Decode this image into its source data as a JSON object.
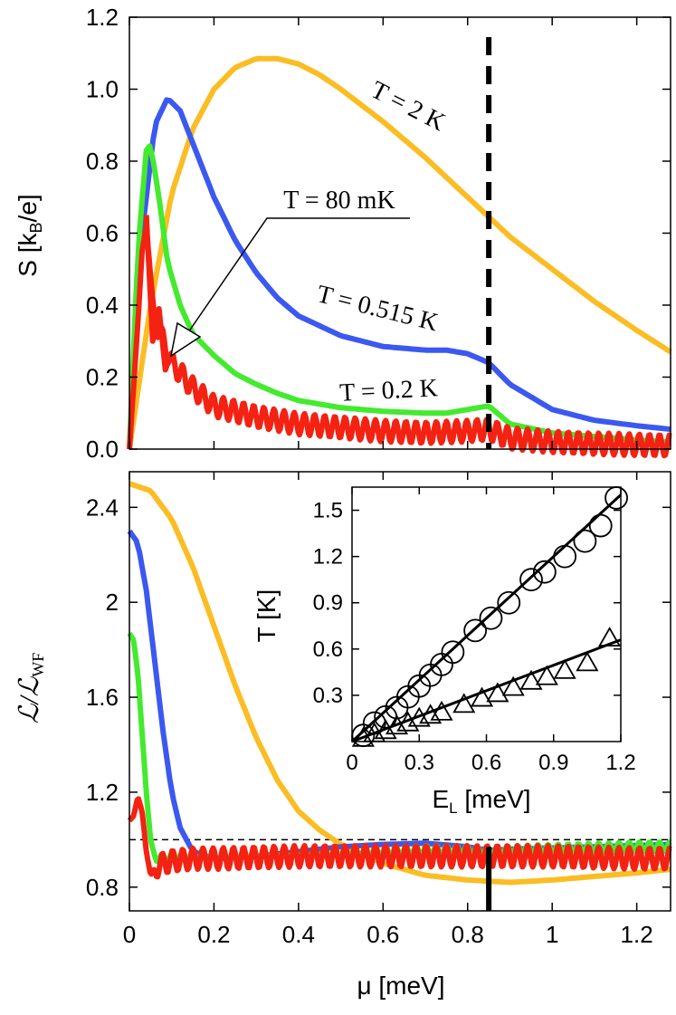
{
  "chart_data": [
    {
      "panel": "top",
      "type": "line",
      "ylabel": "S [kB/e]",
      "ylabel_main": "S [k",
      "ylabel_sub": "B",
      "ylabel_end": "/e]",
      "xlim": [
        0,
        1.28
      ],
      "ylim": [
        0,
        1.2
      ],
      "x_ticks": [
        0,
        0.2,
        0.4,
        0.6,
        0.8,
        1,
        1.2
      ],
      "y_ticks": [
        0.0,
        0.2,
        0.4,
        0.6,
        0.8,
        1.0,
        1.2
      ],
      "y_tick_labels": [
        "0.0",
        "0.2",
        "0.4",
        "0.6",
        "0.8",
        "1.0",
        "1.2"
      ],
      "vline_x": 0.85,
      "series": [
        {
          "name": "T = 2 K",
          "color": "#fbbd23",
          "x": [
            0,
            0.05,
            0.1,
            0.15,
            0.2,
            0.25,
            0.3,
            0.35,
            0.4,
            0.45,
            0.5,
            0.6,
            0.7,
            0.8,
            0.85,
            0.9,
            1.0,
            1.1,
            1.2,
            1.28
          ],
          "y": [
            0,
            0.4,
            0.71,
            0.89,
            1.0,
            1.06,
            1.085,
            1.085,
            1.07,
            1.04,
            1.0,
            0.91,
            0.81,
            0.7,
            0.645,
            0.59,
            0.5,
            0.41,
            0.33,
            0.27
          ]
        },
        {
          "name": "T = 0.515 K",
          "color": "#3b58f0",
          "x": [
            0,
            0.03,
            0.06,
            0.09,
            0.12,
            0.15,
            0.2,
            0.25,
            0.3,
            0.35,
            0.4,
            0.5,
            0.6,
            0.7,
            0.75,
            0.8,
            0.85,
            0.9,
            1.0,
            1.1,
            1.2,
            1.28
          ],
          "y": [
            0,
            0.6,
            0.9,
            0.975,
            0.94,
            0.85,
            0.7,
            0.58,
            0.49,
            0.42,
            0.37,
            0.315,
            0.285,
            0.275,
            0.275,
            0.265,
            0.24,
            0.18,
            0.11,
            0.08,
            0.065,
            0.055
          ]
        },
        {
          "name": "T = 0.2 K",
          "color": "#44ea2e",
          "x": [
            0,
            0.02,
            0.04,
            0.05,
            0.07,
            0.09,
            0.12,
            0.15,
            0.2,
            0.25,
            0.3,
            0.35,
            0.4,
            0.5,
            0.6,
            0.7,
            0.75,
            0.8,
            0.85,
            0.9,
            1.0,
            1.1,
            1.2,
            1.28
          ],
          "y": [
            0,
            0.55,
            0.83,
            0.845,
            0.7,
            0.52,
            0.4,
            0.32,
            0.26,
            0.21,
            0.18,
            0.155,
            0.135,
            0.115,
            0.105,
            0.1,
            0.1,
            0.11,
            0.12,
            0.07,
            0.045,
            0.035,
            0.025,
            0.02
          ]
        },
        {
          "name": "T = 80 mK",
          "color": "#f42212",
          "x": [
            0,
            0.02,
            0.03,
            0.04,
            0.05,
            0.06,
            0.08,
            0.1,
            0.15,
            0.2,
            0.3,
            0.4,
            0.5,
            0.6,
            0.7,
            0.8,
            0.85,
            0.9,
            1.0,
            1.1,
            1.2,
            1.28
          ],
          "y": [
            0,
            0.35,
            0.55,
            0.62,
            0.48,
            0.36,
            0.3,
            0.24,
            0.17,
            0.12,
            0.09,
            0.07,
            0.06,
            0.05,
            0.045,
            0.05,
            0.055,
            0.03,
            0.02,
            0.015,
            0.012,
            0.01
          ],
          "oscillation_amplitude": 0.03
        },
        {
          "name": "T = 80 mK spikes",
          "color": "#f42212",
          "x": [
            0.04,
            0.055,
            0.07,
            0.085,
            0.1
          ],
          "y": [
            0.65,
            0.3,
            0.39,
            0.22,
            0.27
          ],
          "markers": false
        }
      ],
      "annotations": {
        "t2": "T = 2 K",
        "t0515": "T = 0.515 K",
        "t02": "T = 0.2 K",
        "t80": "T = 80 mK"
      }
    },
    {
      "panel": "bottom",
      "type": "line",
      "xlabel": "μ [meV]",
      "ylabel": "L/L_WF",
      "ylabel_main": "ℒ/ℒ",
      "ylabel_sub": "WF",
      "xlim": [
        0,
        1.28
      ],
      "ylim": [
        0.7,
        2.55
      ],
      "x_ticks": [
        0,
        0.2,
        0.4,
        0.6,
        0.8,
        1,
        1.2
      ],
      "y_ticks": [
        0.8,
        1.2,
        1.6,
        2,
        2.4
      ],
      "y_tick_labels": [
        "0.8",
        "1.2",
        "1.6",
        "2",
        "2.4"
      ],
      "hline_y": 1.0,
      "vline_x": 0.85,
      "series": [
        {
          "name": "T = 2 K",
          "color": "#fbbd23",
          "x": [
            0,
            0.05,
            0.1,
            0.15,
            0.2,
            0.25,
            0.3,
            0.35,
            0.4,
            0.45,
            0.5,
            0.6,
            0.7,
            0.8,
            0.9,
            1.0,
            1.1,
            1.2,
            1.28
          ],
          "y": [
            2.5,
            2.47,
            2.35,
            2.15,
            1.9,
            1.65,
            1.43,
            1.25,
            1.12,
            1.04,
            0.98,
            0.9,
            0.85,
            0.83,
            0.82,
            0.83,
            0.845,
            0.86,
            0.875
          ]
        },
        {
          "name": "T = 0.515 K",
          "color": "#3b58f0",
          "x": [
            0,
            0.02,
            0.04,
            0.06,
            0.08,
            0.1,
            0.12,
            0.15,
            0.2,
            0.3,
            0.4,
            0.5,
            0.6,
            0.7,
            0.8,
            0.85,
            0.9,
            1.0,
            1.1,
            1.2,
            1.28
          ],
          "y": [
            2.3,
            2.25,
            2.05,
            1.75,
            1.45,
            1.2,
            1.05,
            0.95,
            0.92,
            0.93,
            0.95,
            0.97,
            0.98,
            0.985,
            0.97,
            0.955,
            0.96,
            0.965,
            0.97,
            0.975,
            0.98
          ]
        },
        {
          "name": "T = 0.2 K",
          "color": "#44ea2e",
          "x": [
            0,
            0.01,
            0.02,
            0.03,
            0.04,
            0.05,
            0.06,
            0.08,
            0.1,
            0.15,
            0.2,
            0.3,
            0.4,
            0.5,
            0.6,
            0.7,
            0.8,
            0.85,
            0.9,
            1.0,
            1.1,
            1.2,
            1.28
          ],
          "y": [
            1.87,
            1.84,
            1.7,
            1.45,
            1.2,
            1.0,
            0.93,
            0.92,
            0.93,
            0.93,
            0.93,
            0.935,
            0.94,
            0.945,
            0.95,
            0.955,
            0.955,
            0.95,
            0.955,
            0.96,
            0.965,
            0.97,
            0.97
          ],
          "oscillation_amplitude": 0.02
        },
        {
          "name": "T = 80 mK",
          "color": "#f42212",
          "x": [
            0,
            0.01,
            0.02,
            0.03,
            0.04,
            0.05,
            0.06,
            0.08,
            0.1,
            0.15,
            0.2,
            0.3,
            0.4,
            0.5,
            0.6,
            0.7,
            0.8,
            0.9,
            1.0,
            1.1,
            1.2,
            1.28
          ],
          "y": [
            1.08,
            1.1,
            1.18,
            1.12,
            0.95,
            0.85,
            0.88,
            0.9,
            0.91,
            0.92,
            0.92,
            0.925,
            0.93,
            0.93,
            0.93,
            0.93,
            0.93,
            0.93,
            0.93,
            0.925,
            0.92,
            0.92
          ],
          "oscillation_amplitude": 0.045
        }
      ]
    },
    {
      "panel": "inset",
      "type": "scatter",
      "xlabel": "E_L [meV]",
      "xlabel_main": "E",
      "xlabel_sub": "L",
      "xlabel_end": " [meV]",
      "ylabel": "T [K]",
      "xlim": [
        0,
        1.2
      ],
      "ylim": [
        0,
        1.65
      ],
      "x_ticks": [
        0,
        0.3,
        0.6,
        0.9,
        1.2
      ],
      "x_tick_labels": [
        "0",
        "0.3",
        "0.6",
        "0.9",
        "1.2"
      ],
      "y_ticks": [
        0.3,
        0.6,
        0.9,
        1.2,
        1.5
      ],
      "y_tick_labels": [
        "0.3",
        "0.6",
        "0.9",
        "1.2",
        "1.5"
      ],
      "series": [
        {
          "name": "circles",
          "marker": "circle",
          "x": [
            0.05,
            0.1,
            0.15,
            0.2,
            0.25,
            0.3,
            0.35,
            0.4,
            0.45,
            0.55,
            0.62,
            0.7,
            0.8,
            0.86,
            0.95,
            1.04,
            1.11,
            1.18
          ],
          "y": [
            0.04,
            0.12,
            0.16,
            0.22,
            0.29,
            0.36,
            0.43,
            0.5,
            0.58,
            0.72,
            0.8,
            0.9,
            1.05,
            1.1,
            1.2,
            1.3,
            1.4,
            1.58
          ],
          "fit": [
            [
              0,
              0
            ],
            [
              1.2,
              1.6
            ]
          ]
        },
        {
          "name": "triangles",
          "marker": "triangle",
          "x": [
            0.05,
            0.1,
            0.15,
            0.2,
            0.25,
            0.3,
            0.35,
            0.4,
            0.5,
            0.58,
            0.65,
            0.72,
            0.8,
            0.87,
            0.95,
            1.05,
            1.15
          ],
          "y": [
            0.02,
            0.05,
            0.07,
            0.1,
            0.12,
            0.15,
            0.17,
            0.19,
            0.24,
            0.28,
            0.31,
            0.35,
            0.39,
            0.42,
            0.46,
            0.51,
            0.67
          ],
          "fit": [
            [
              0,
              0
            ],
            [
              1.2,
              0.66
            ]
          ]
        }
      ]
    }
  ]
}
